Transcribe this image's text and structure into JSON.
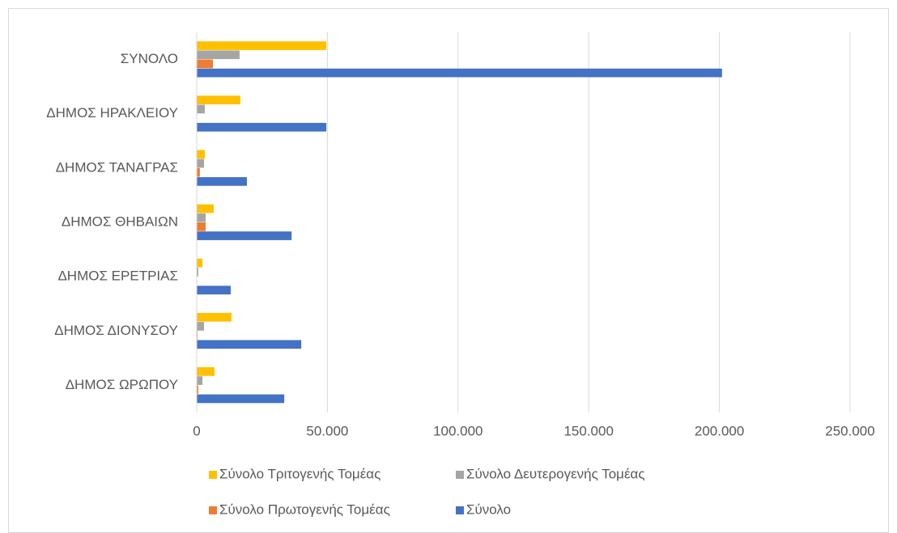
{
  "chart_data": {
    "type": "bar",
    "orientation": "horizontal",
    "categories": [
      "ΣΥΝΟΛΟ",
      "ΔΗΜΟΣ ΗΡΑΚΛΕΙΟΥ",
      "ΔΗΜΟΣ ΤΑΝΑΓΡΑΣ",
      "ΔΗΜΟΣ ΘΗΒΑΙΩΝ",
      "ΔΗΜΟΣ ΕΡΕΤΡΙΑΣ",
      "ΔΗΜΟΣ ΔΙΟΝΥΣΟΥ",
      "ΔΗΜΟΣ ΩΡΩΠΟΥ"
    ],
    "series": [
      {
        "name": "Σύνολο Τριτογενής Τομέας",
        "color": "#ffc000",
        "values": [
          49600,
          16700,
          3100,
          6500,
          2200,
          13300,
          6800
        ]
      },
      {
        "name": "Σύνολο Δευτερογενής Τομέας",
        "color": "#a5a5a5",
        "values": [
          16400,
          3100,
          2800,
          3400,
          600,
          2800,
          2200
        ]
      },
      {
        "name": "Σύνολο Πρωτογενής Τομέας",
        "color": "#ed7d31",
        "values": [
          6200,
          0,
          1200,
          3400,
          0,
          300,
          600
        ]
      },
      {
        "name": "Σύνολο",
        "color": "#4472c4",
        "values": [
          201000,
          49600,
          19200,
          36300,
          13000,
          40000,
          33500
        ]
      }
    ],
    "xlim": [
      0,
      250000
    ],
    "xticks": [
      0,
      {
        "value": 50000,
        "label": "50.000"
      },
      {
        "value": 100000,
        "label": "100.000"
      },
      {
        "value": 150000,
        "label": "150.000"
      },
      {
        "value": 200000,
        "label": "200.000"
      },
      {
        "value": 250000,
        "label": "250.000"
      }
    ],
    "grid": true,
    "legend": "bottom"
  }
}
